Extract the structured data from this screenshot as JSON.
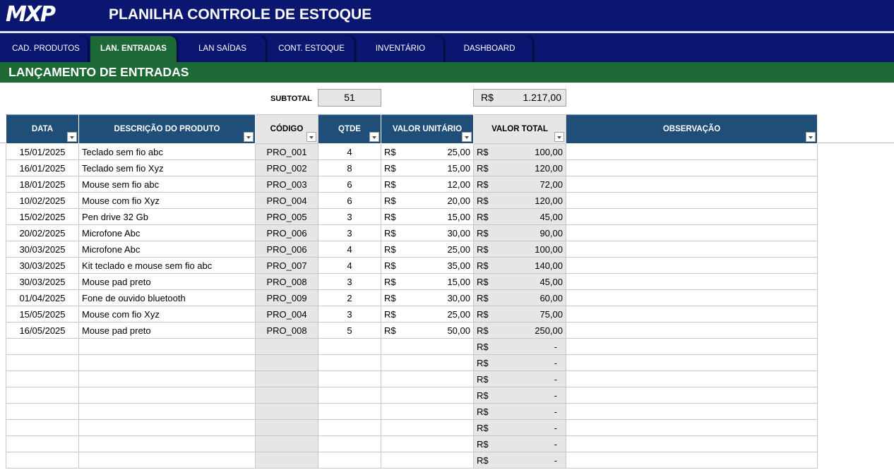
{
  "app": {
    "logo_text": "MXP",
    "title": "PLANILHA CONTROLE DE ESTOQUE"
  },
  "tabs": [
    {
      "label": "CAD. PRODUTOS",
      "active": false
    },
    {
      "label": "LAN. ENTRADAS",
      "active": true
    },
    {
      "label": "LAN SAÍDAS",
      "active": false
    },
    {
      "label": "CONT. ESTOQUE",
      "active": false
    },
    {
      "label": "INVENTÁRIO",
      "active": false
    },
    {
      "label": "DASHBOARD",
      "active": false
    }
  ],
  "section_title": "LANÇAMENTO DE ENTRADAS",
  "subtotal": {
    "label": "SUBTOTAL",
    "quantity": "51",
    "currency": "R$",
    "value": "1.217,00"
  },
  "columns": [
    "DATA",
    "DESCRIÇÃO DO PRODUTO",
    "CÓDIGO",
    "QTDE",
    "VALOR UNITÁRIO",
    "VALOR TOTAL",
    "OBSERVAÇÃO"
  ],
  "currency_symbol": "R$",
  "rows": [
    {
      "data": "15/01/2025",
      "descricao": "Teclado sem fio abc",
      "codigo": "PRO_001",
      "qtde": "4",
      "valor_unitario": "25,00",
      "valor_total": "100,00",
      "observacao": ""
    },
    {
      "data": "16/01/2025",
      "descricao": "Teclado sem fio Xyz",
      "codigo": "PRO_002",
      "qtde": "8",
      "valor_unitario": "15,00",
      "valor_total": "120,00",
      "observacao": ""
    },
    {
      "data": "18/01/2025",
      "descricao": "Mouse sem fio abc",
      "codigo": "PRO_003",
      "qtde": "6",
      "valor_unitario": "12,00",
      "valor_total": "72,00",
      "observacao": ""
    },
    {
      "data": "10/02/2025",
      "descricao": "Mouse com fio Xyz",
      "codigo": "PRO_004",
      "qtde": "6",
      "valor_unitario": "20,00",
      "valor_total": "120,00",
      "observacao": ""
    },
    {
      "data": "15/02/2025",
      "descricao": "Pen drive 32 Gb",
      "codigo": "PRO_005",
      "qtde": "3",
      "valor_unitario": "15,00",
      "valor_total": "45,00",
      "observacao": ""
    },
    {
      "data": "20/02/2025",
      "descricao": "Microfone Abc",
      "codigo": "PRO_006",
      "qtde": "3",
      "valor_unitario": "30,00",
      "valor_total": "90,00",
      "observacao": ""
    },
    {
      "data": "30/03/2025",
      "descricao": "Microfone Abc",
      "codigo": "PRO_006",
      "qtde": "4",
      "valor_unitario": "25,00",
      "valor_total": "100,00",
      "observacao": ""
    },
    {
      "data": "30/03/2025",
      "descricao": "Kit teclado e mouse sem fio abc",
      "codigo": "PRO_007",
      "qtde": "4",
      "valor_unitario": "35,00",
      "valor_total": "140,00",
      "observacao": ""
    },
    {
      "data": "30/03/2025",
      "descricao": "Mouse pad preto",
      "codigo": "PRO_008",
      "qtde": "3",
      "valor_unitario": "15,00",
      "valor_total": "45,00",
      "observacao": ""
    },
    {
      "data": "01/04/2025",
      "descricao": "Fone de ouvido bluetooth",
      "codigo": "PRO_009",
      "qtde": "2",
      "valor_unitario": "30,00",
      "valor_total": "60,00",
      "observacao": ""
    },
    {
      "data": "15/05/2025",
      "descricao": "Mouse com fio Xyz",
      "codigo": "PRO_004",
      "qtde": "3",
      "valor_unitario": "25,00",
      "valor_total": "75,00",
      "observacao": ""
    },
    {
      "data": "16/05/2025",
      "descricao": "Mouse pad preto",
      "codigo": "PRO_008",
      "qtde": "5",
      "valor_unitario": "50,00",
      "valor_total": "250,00",
      "observacao": ""
    },
    {
      "data": "",
      "descricao": "",
      "codigo": "",
      "qtde": "",
      "valor_unitario": "",
      "valor_total": "-",
      "observacao": ""
    },
    {
      "data": "",
      "descricao": "",
      "codigo": "",
      "qtde": "",
      "valor_unitario": "",
      "valor_total": "-",
      "observacao": ""
    },
    {
      "data": "",
      "descricao": "",
      "codigo": "",
      "qtde": "",
      "valor_unitario": "",
      "valor_total": "-",
      "observacao": ""
    },
    {
      "data": "",
      "descricao": "",
      "codigo": "",
      "qtde": "",
      "valor_unitario": "",
      "valor_total": "-",
      "observacao": ""
    },
    {
      "data": "",
      "descricao": "",
      "codigo": "",
      "qtde": "",
      "valor_unitario": "",
      "valor_total": "-",
      "observacao": ""
    },
    {
      "data": "",
      "descricao": "",
      "codigo": "",
      "qtde": "",
      "valor_unitario": "",
      "valor_total": "-",
      "observacao": ""
    },
    {
      "data": "",
      "descricao": "",
      "codigo": "",
      "qtde": "",
      "valor_unitario": "",
      "valor_total": "-",
      "observacao": ""
    },
    {
      "data": "",
      "descricao": "",
      "codigo": "",
      "qtde": "",
      "valor_unitario": "",
      "valor_total": "-",
      "observacao": ""
    }
  ],
  "colors": {
    "brand_navy": "#0a1670",
    "section_green": "#1e6a37",
    "header_blue": "#1f4e79",
    "grey_column": "#e6e6e6"
  },
  "icons": [
    "filter-dropdown-icon",
    "sort-filter-icon"
  ]
}
